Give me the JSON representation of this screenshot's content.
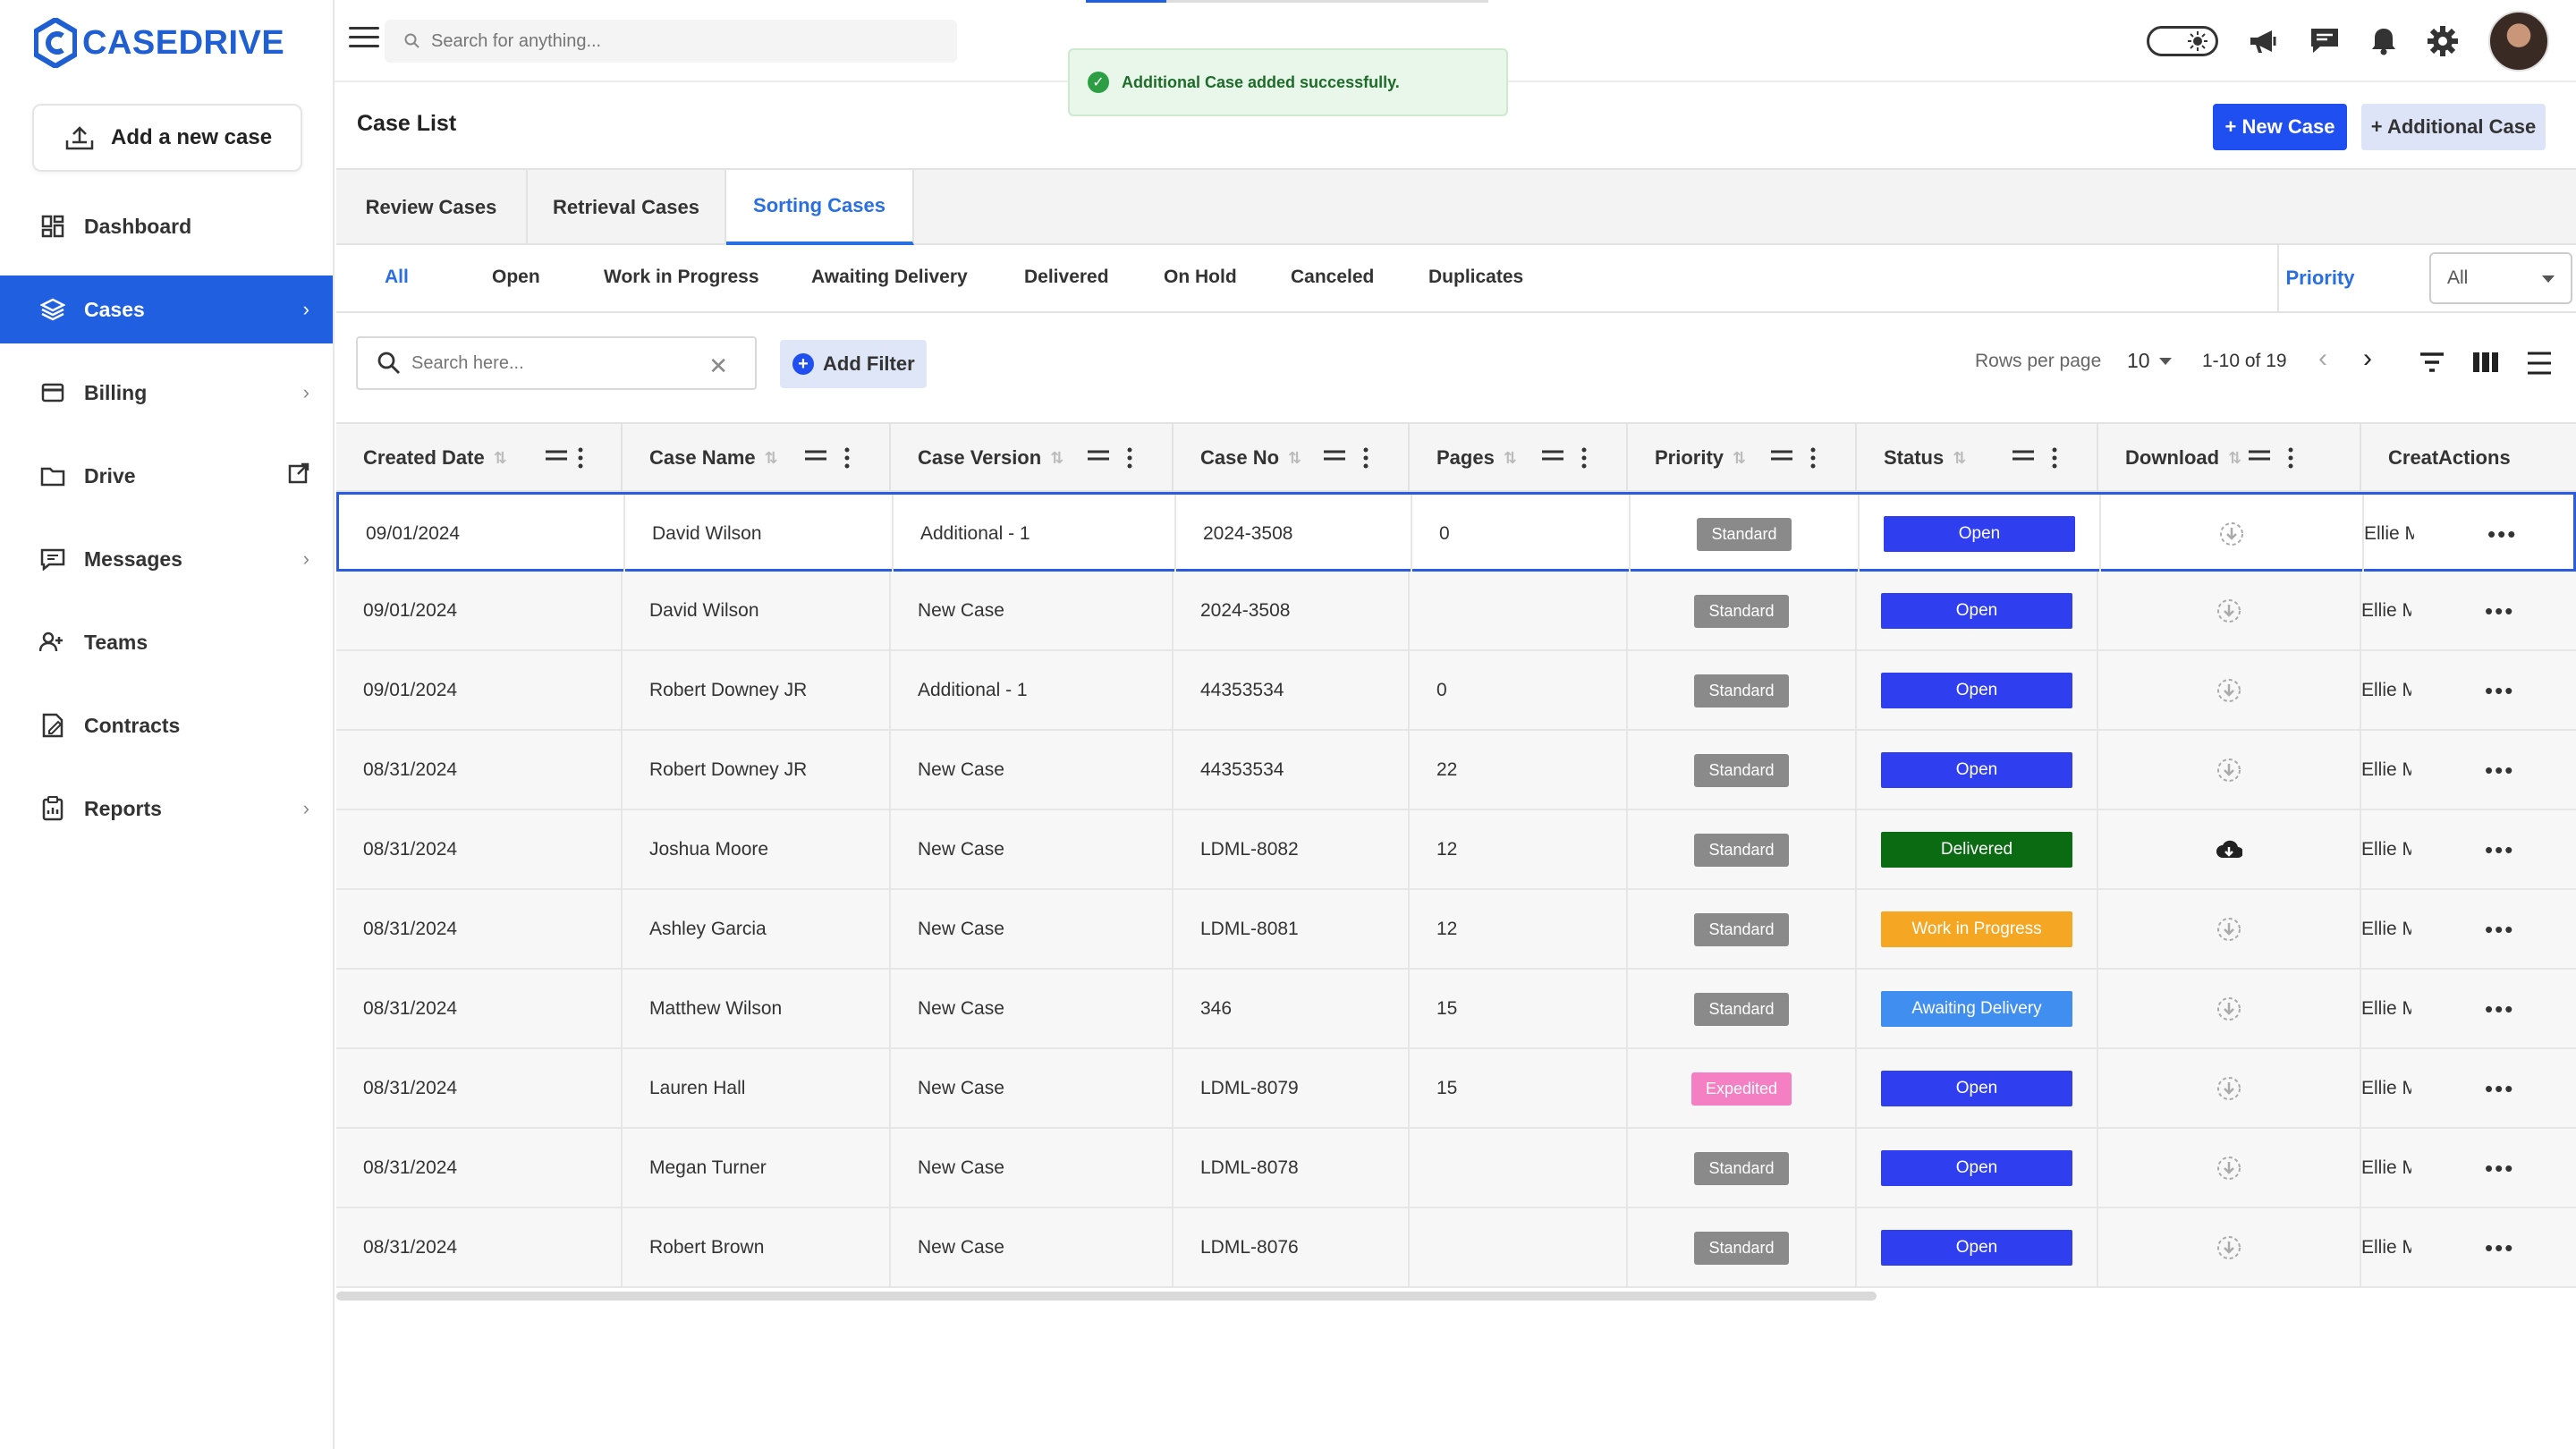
{
  "brand": {
    "name": "CASEDRIVE",
    "color": "#1f5fd1"
  },
  "sidebar": {
    "add_case_label": "Add a new case",
    "items": [
      {
        "label": "Dashboard",
        "icon": "dashboard-icon",
        "trail": ""
      },
      {
        "label": "Cases",
        "icon": "layers-icon",
        "trail": "›",
        "active": true
      },
      {
        "label": "Billing",
        "icon": "billing-icon",
        "trail": "›"
      },
      {
        "label": "Drive",
        "icon": "folder-icon",
        "trail": "external-link-icon"
      },
      {
        "label": "Messages",
        "icon": "messages-icon",
        "trail": "›"
      },
      {
        "label": "Teams",
        "icon": "teams-icon",
        "trail": ""
      },
      {
        "label": "Contracts",
        "icon": "contracts-icon",
        "trail": ""
      },
      {
        "label": "Reports",
        "icon": "reports-icon",
        "trail": "›"
      }
    ]
  },
  "topbar": {
    "search_placeholder": "Search for anything..."
  },
  "toast": {
    "message": "Additional Case added successfully."
  },
  "header": {
    "title": "Case List",
    "new_case_label": "+ New Case",
    "additional_case_label": "+ Additional Case"
  },
  "tabs": [
    {
      "label": "Review Cases"
    },
    {
      "label": "Retrieval Cases"
    },
    {
      "label": "Sorting Cases",
      "active": true
    }
  ],
  "status_filters": [
    "All",
    "Open",
    "Work in Progress",
    "Awaiting Delivery",
    "Delivered",
    "On Hold",
    "Canceled",
    "Duplicates"
  ],
  "priority_filter": {
    "label": "Priority",
    "value": "All"
  },
  "toolbar": {
    "search_placeholder": "Search here...",
    "add_filter_label": "Add Filter",
    "rows_per_page_label": "Rows per page",
    "rows_per_page_value": "10",
    "range": "1-10 of 19"
  },
  "columns": [
    "Created Date",
    "Case Name",
    "Case Version",
    "Case No",
    "Pages",
    "Priority",
    "Status",
    "Download",
    "Creat",
    "Actions"
  ],
  "status_colors": {
    "Open": "#2f3ff0",
    "Delivered": "#0b6b12",
    "Work in Progress": "#f5a623",
    "Awaiting Delivery": "#3f8ef0"
  },
  "rows": [
    {
      "date": "09/01/2024",
      "name": "David Wilson",
      "version": "Additional - 1",
      "case_no": "2024-3508",
      "pages": "0",
      "priority": "Standard",
      "status": "Open",
      "download": "pending",
      "creator": "Ellie M"
    },
    {
      "date": "09/01/2024",
      "name": "David Wilson",
      "version": "New Case",
      "case_no": "2024-3508",
      "pages": "",
      "priority": "Standard",
      "status": "Open",
      "download": "pending",
      "creator": "Ellie M"
    },
    {
      "date": "09/01/2024",
      "name": "Robert Downey JR",
      "version": "Additional - 1",
      "case_no": "44353534",
      "pages": "0",
      "priority": "Standard",
      "status": "Open",
      "download": "pending",
      "creator": "Ellie M"
    },
    {
      "date": "08/31/2024",
      "name": "Robert Downey JR",
      "version": "New Case",
      "case_no": "44353534",
      "pages": "22",
      "priority": "Standard",
      "status": "Open",
      "download": "pending",
      "creator": "Ellie M"
    },
    {
      "date": "08/31/2024",
      "name": "Joshua Moore",
      "version": "New Case",
      "case_no": "LDML-8082",
      "pages": "12",
      "priority": "Standard",
      "status": "Delivered",
      "download": "ready",
      "creator": "Ellie M"
    },
    {
      "date": "08/31/2024",
      "name": "Ashley Garcia",
      "version": "New Case",
      "case_no": "LDML-8081",
      "pages": "12",
      "priority": "Standard",
      "status": "Work in Progress",
      "download": "pending",
      "creator": "Ellie M"
    },
    {
      "date": "08/31/2024",
      "name": "Matthew Wilson",
      "version": "New Case",
      "case_no": "346",
      "pages": "15",
      "priority": "Standard",
      "status": "Awaiting Delivery",
      "download": "pending",
      "creator": "Ellie M"
    },
    {
      "date": "08/31/2024",
      "name": "Lauren Hall",
      "version": "New Case",
      "case_no": "LDML-8079",
      "pages": "15",
      "priority": "Expedited",
      "status": "Open",
      "download": "pending",
      "creator": "Ellie M"
    },
    {
      "date": "08/31/2024",
      "name": "Megan Turner",
      "version": "New Case",
      "case_no": "LDML-8078",
      "pages": "",
      "priority": "Standard",
      "status": "Open",
      "download": "pending",
      "creator": "Ellie M"
    },
    {
      "date": "08/31/2024",
      "name": "Robert Brown",
      "version": "New Case",
      "case_no": "LDML-8076",
      "pages": "",
      "priority": "Standard",
      "status": "Open",
      "download": "pending",
      "creator": "Ellie M"
    }
  ]
}
